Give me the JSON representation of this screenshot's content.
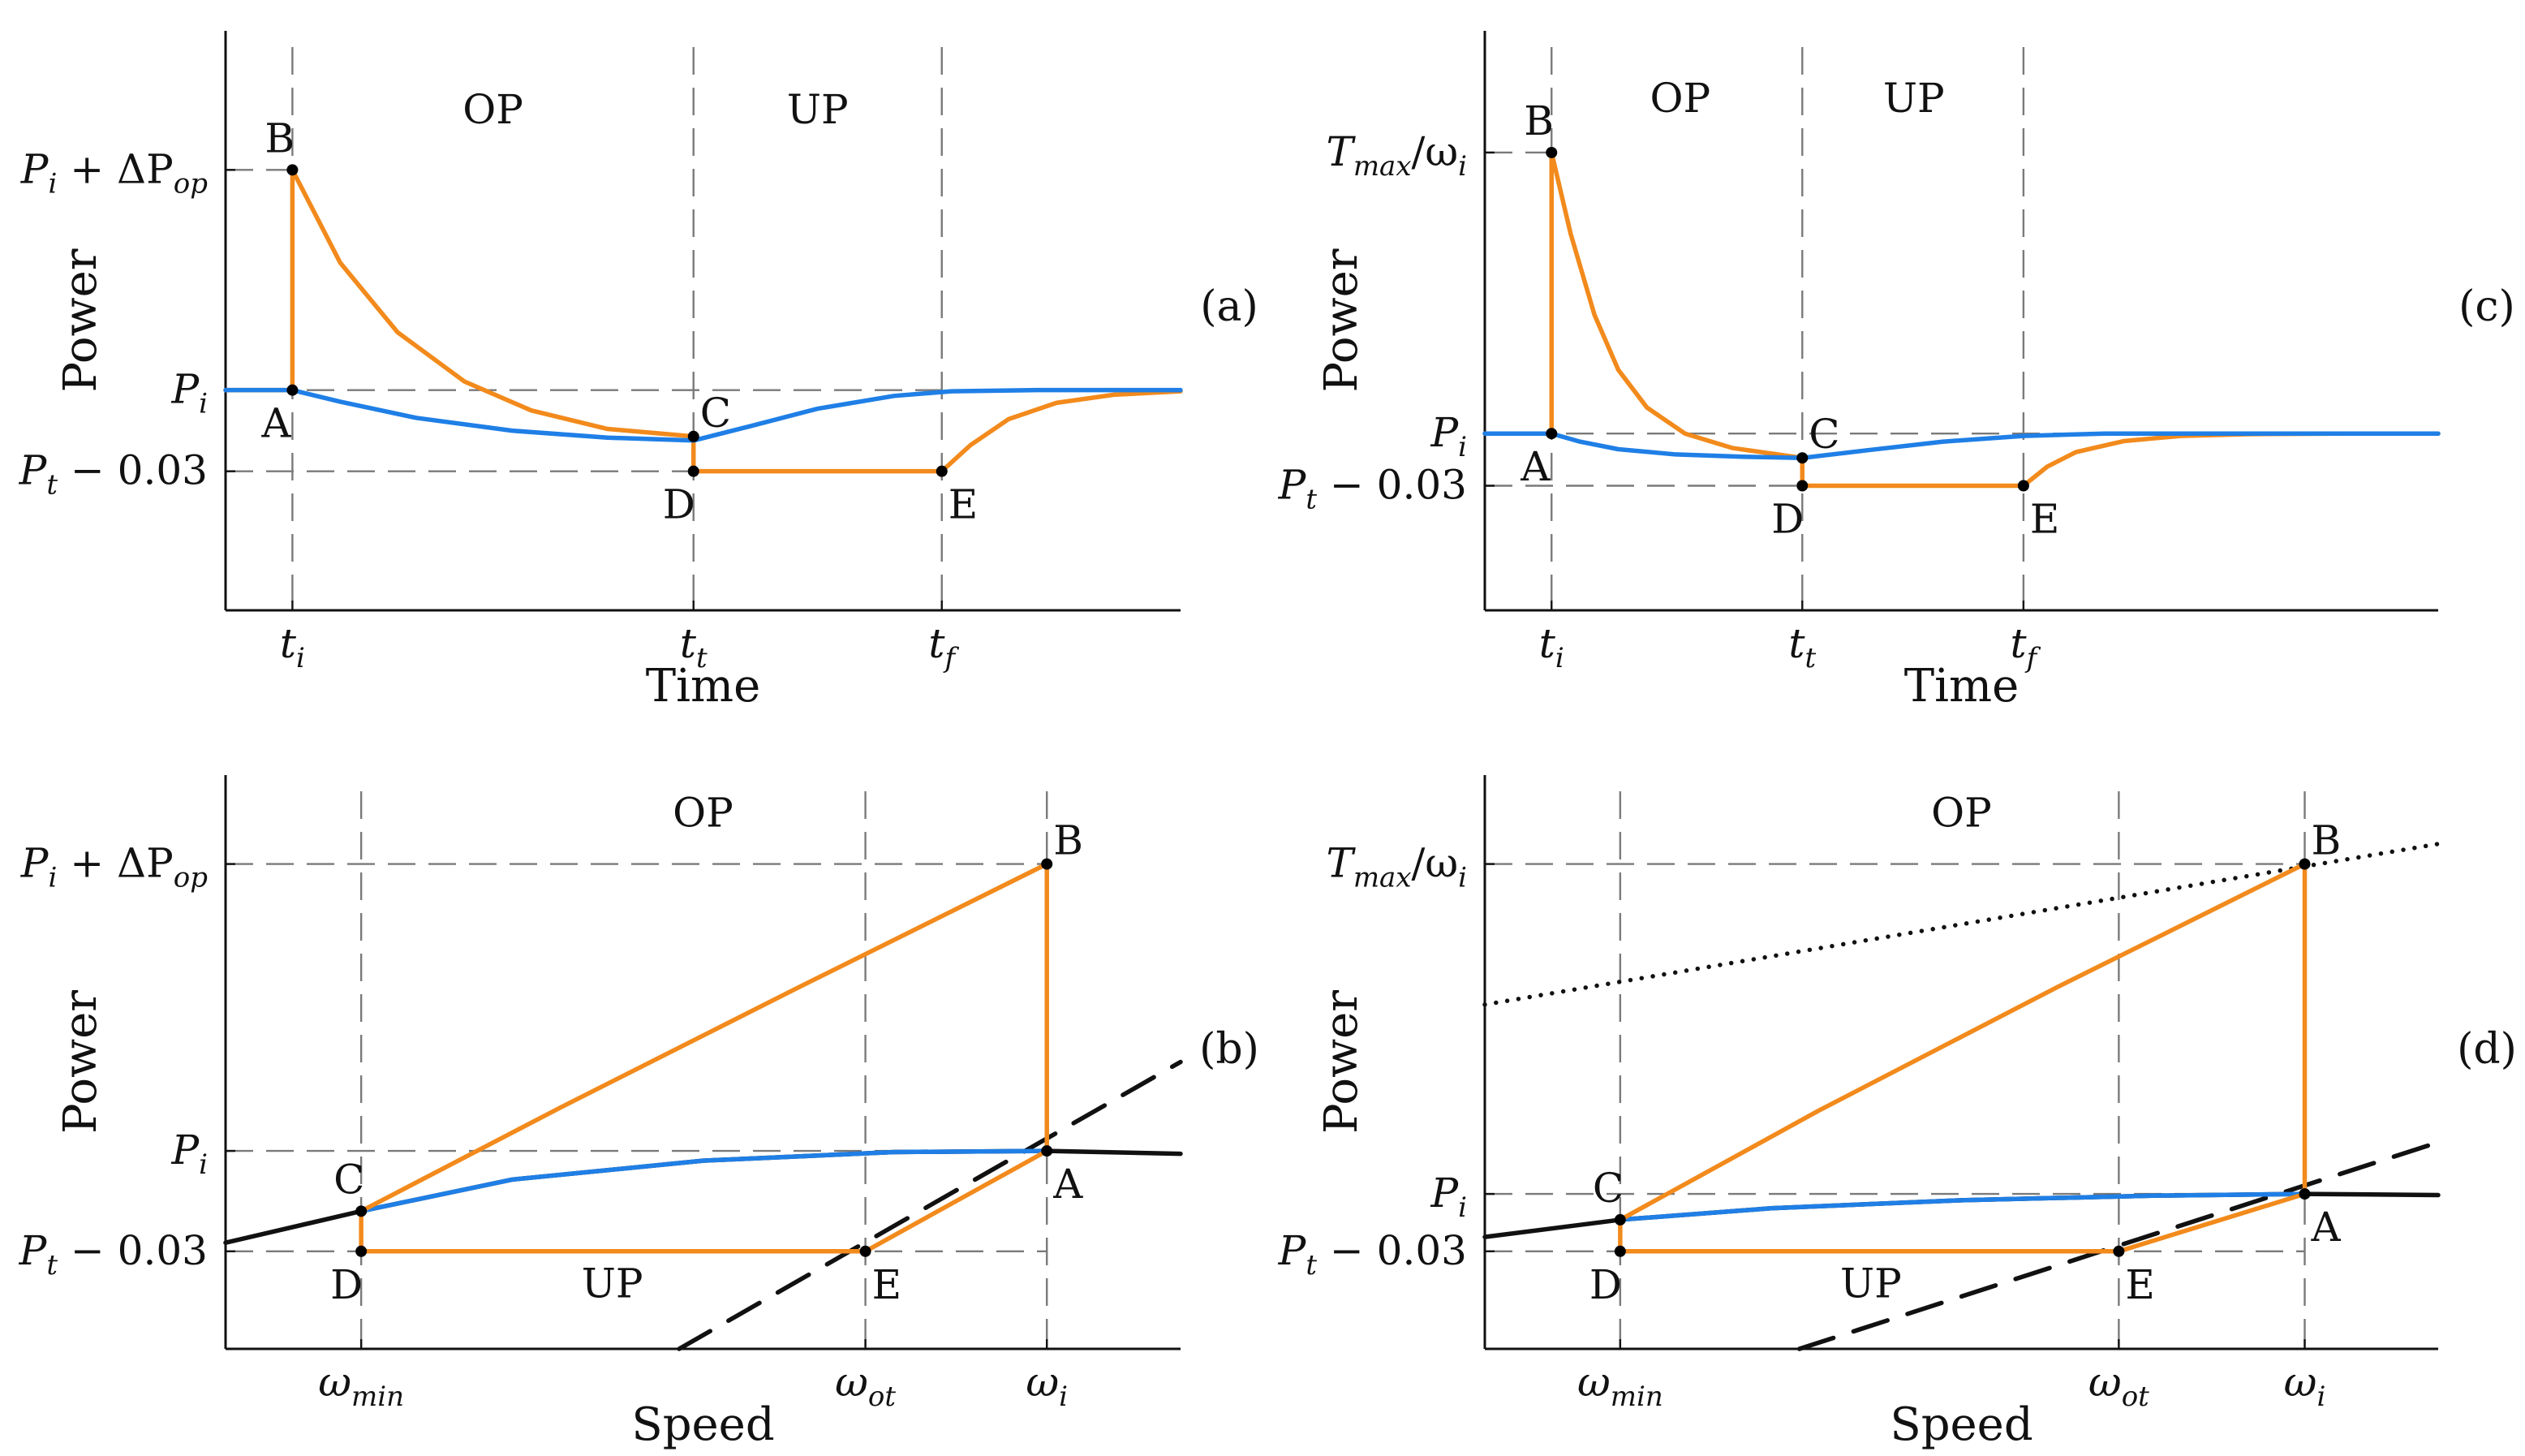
{
  "colors": {
    "orange": "#f28a1c",
    "blue": "#1f7fe6",
    "black": "#111111",
    "grid": "#7a7a7a"
  },
  "chart_data": [
    {
      "id": "a",
      "panel_label": "(a)",
      "type": "line",
      "xlabel": "Time",
      "ylabel": "Power",
      "xlim": [
        0,
        100
      ],
      "ylim": [
        0,
        100
      ],
      "x_ticks": [
        {
          "label": "t_i",
          "base": "t",
          "sub": "i",
          "x": 7
        },
        {
          "label": "t_t",
          "base": "t",
          "sub": "t",
          "x": 49
        },
        {
          "label": "t_f",
          "base": "t",
          "sub": "f",
          "x": 75
        }
      ],
      "y_ticks": [
        {
          "label": "P_i + ΔP_op",
          "base": "P",
          "sub": "i",
          "tail": " + ΔP",
          "tailsub": "op",
          "y": 76
        },
        {
          "label": "P_i",
          "base": "P",
          "sub": "i",
          "y": 38
        },
        {
          "label": "P_t − 0.03",
          "base": "P",
          "sub": "t",
          "tail": " − 0.03",
          "y": 24
        }
      ],
      "regions": [
        {
          "label": "OP",
          "x": 28,
          "y": 84
        },
        {
          "label": "UP",
          "x": 62,
          "y": 84
        }
      ],
      "series": [
        {
          "name": "orange",
          "color_key": "orange",
          "x": [
            0,
            7,
            7,
            12,
            18,
            25,
            32,
            40,
            49,
            49,
            75,
            78,
            82,
            87,
            93,
            100
          ],
          "y": [
            38,
            38,
            76,
            60,
            48,
            39.5,
            34.5,
            31.3,
            30,
            24,
            24,
            28.5,
            33,
            35.8,
            37.2,
            37.8
          ]
        },
        {
          "name": "blue",
          "color_key": "blue",
          "x": [
            0,
            7,
            12,
            20,
            30,
            40,
            49,
            55,
            62,
            70,
            76,
            85,
            100
          ],
          "y": [
            38,
            38,
            36,
            33.2,
            31,
            29.8,
            29.3,
            31.8,
            34.8,
            37,
            37.8,
            38,
            38
          ]
        }
      ],
      "points": [
        {
          "label": "A",
          "x": 7,
          "y": 38,
          "anchor": "bottom-left"
        },
        {
          "label": "B",
          "x": 7,
          "y": 76,
          "anchor": "top-left"
        },
        {
          "label": "C",
          "x": 49,
          "y": 30,
          "anchor": "top-right"
        },
        {
          "label": "D",
          "x": 49,
          "y": 24,
          "anchor": "bottom-left"
        },
        {
          "label": "E",
          "x": 75,
          "y": 24,
          "anchor": "bottom-right"
        }
      ],
      "grid_h": [
        76,
        38,
        24
      ],
      "grid_v": [
        7,
        49,
        75
      ]
    },
    {
      "id": "c",
      "panel_label": "(c)",
      "type": "line",
      "xlabel": "Time",
      "ylabel": "Power",
      "xlim": [
        0,
        100
      ],
      "ylim": [
        0,
        100
      ],
      "x_ticks": [
        {
          "label": "t_i",
          "base": "t",
          "sub": "i",
          "x": 7
        },
        {
          "label": "t_t",
          "base": "t",
          "sub": "t",
          "x": 33.3
        },
        {
          "label": "t_f",
          "base": "t",
          "sub": "f",
          "x": 56.5
        }
      ],
      "y_ticks": [
        {
          "label": "T_max/ω_i",
          "base": "T",
          "sub": "max",
          "tail": "/ω",
          "tailsub": "i",
          "y": 79
        },
        {
          "label": "P_i",
          "base": "P",
          "sub": "i",
          "y": 30.5
        },
        {
          "label": "P_t − 0.03",
          "base": "P",
          "sub": "t",
          "tail": " − 0.03",
          "y": 21.5
        }
      ],
      "regions": [
        {
          "label": "OP",
          "x": 20.5,
          "y": 86
        },
        {
          "label": "UP",
          "x": 45,
          "y": 86
        }
      ],
      "series": [
        {
          "name": "orange",
          "color_key": "orange",
          "x": [
            0,
            7,
            7,
            9,
            11.5,
            14,
            17,
            21,
            26,
            33.3,
            33.3,
            56.5,
            59,
            62,
            67,
            73,
            80,
            90,
            100
          ],
          "y": [
            30.5,
            30.5,
            79,
            65,
            51,
            41.5,
            35,
            30.5,
            28,
            26.3,
            21.5,
            21.5,
            24.8,
            27.3,
            29.2,
            30.1,
            30.4,
            30.5,
            30.5
          ]
        },
        {
          "name": "blue",
          "color_key": "blue",
          "x": [
            0,
            7,
            10,
            14,
            20,
            27,
            33.3,
            40,
            48,
            56.5,
            65,
            100
          ],
          "y": [
            30.5,
            30.5,
            29.1,
            27.8,
            26.9,
            26.5,
            26.3,
            27.6,
            29.1,
            30.1,
            30.5,
            30.5
          ]
        }
      ],
      "points": [
        {
          "label": "A",
          "x": 7,
          "y": 30.5,
          "anchor": "bottom-left"
        },
        {
          "label": "B",
          "x": 7,
          "y": 79,
          "anchor": "top-left"
        },
        {
          "label": "C",
          "x": 33.3,
          "y": 26.3,
          "anchor": "top-right"
        },
        {
          "label": "D",
          "x": 33.3,
          "y": 21.5,
          "anchor": "bottom-left"
        },
        {
          "label": "E",
          "x": 56.5,
          "y": 21.5,
          "anchor": "bottom-right"
        }
      ],
      "grid_h": [
        79,
        30.5,
        21.5
      ],
      "grid_v": [
        7,
        33.3,
        56.5
      ]
    },
    {
      "id": "b",
      "panel_label": "(b)",
      "type": "line",
      "xlabel": "Speed",
      "ylabel": "Power",
      "xlim": [
        0,
        100
      ],
      "ylim": [
        0,
        100
      ],
      "x_ticks": [
        {
          "label": "ω_min",
          "base": "ω",
          "sub": "min",
          "x": 14.2
        },
        {
          "label": "ω_ot",
          "base": "ω",
          "sub": "ot",
          "x": 67
        },
        {
          "label": "ω_i",
          "base": "ω",
          "sub": "i",
          "x": 86
        }
      ],
      "y_ticks": [
        {
          "label": "P_i + ΔP_op",
          "base": "P",
          "sub": "i",
          "tail": " + ΔP",
          "tailsub": "op",
          "y": 84.5
        },
        {
          "label": "P_i",
          "base": "P",
          "sub": "i",
          "y": 34.5
        },
        {
          "label": "P_t − 0.03",
          "base": "P",
          "sub": "t",
          "tail": " − 0.03",
          "y": 17
        }
      ],
      "regions": [
        {
          "label": "OP",
          "x": 50,
          "y": 91
        },
        {
          "label": "UP",
          "x": 40.5,
          "y": 9
        }
      ],
      "series": [
        {
          "name": "black",
          "color_key": "black",
          "style": "solid",
          "x": [
            0,
            14.2,
            30,
            50,
            70,
            86,
            100
          ],
          "y": [
            18.5,
            24,
            29.5,
            32.8,
            34.3,
            34.5,
            34
          ]
        },
        {
          "name": "black-dashed",
          "color_key": "black",
          "style": "dashed",
          "x": [
            47.5,
            100
          ],
          "y": [
            0,
            50
          ]
        },
        {
          "name": "blue",
          "color_key": "blue",
          "x": [
            14.2,
            30,
            50,
            70,
            86
          ],
          "y": [
            24,
            29.5,
            32.8,
            34.3,
            34.5
          ]
        },
        {
          "name": "orange",
          "color_key": "orange",
          "x": [
            14.2,
            14.2,
            67,
            86,
            86,
            60,
            35,
            14.2
          ],
          "y": [
            24,
            17,
            17,
            34.5,
            84.5,
            63,
            42,
            24
          ]
        }
      ],
      "points": [
        {
          "label": "A",
          "x": 86,
          "y": 34.5,
          "anchor": "bottom-right"
        },
        {
          "label": "B",
          "x": 86,
          "y": 84.5,
          "anchor": "top-right"
        },
        {
          "label": "C",
          "x": 14.2,
          "y": 24,
          "anchor": "top-left"
        },
        {
          "label": "D",
          "x": 14.2,
          "y": 17,
          "anchor": "bottom-left"
        },
        {
          "label": "E",
          "x": 67,
          "y": 17,
          "anchor": "bottom-right"
        }
      ],
      "grid_h": [
        84.5,
        34.5,
        17
      ],
      "grid_v": [
        14.2,
        67,
        86
      ]
    },
    {
      "id": "d",
      "panel_label": "(d)",
      "type": "line",
      "xlabel": "Speed",
      "ylabel": "Power",
      "xlim": [
        0,
        100
      ],
      "ylim": [
        0,
        100
      ],
      "x_ticks": [
        {
          "label": "ω_min",
          "base": "ω",
          "sub": "min",
          "x": 14.2
        },
        {
          "label": "ω_ot",
          "base": "ω",
          "sub": "ot",
          "x": 66.5
        },
        {
          "label": "ω_i",
          "base": "ω",
          "sub": "i",
          "x": 86
        }
      ],
      "y_ticks": [
        {
          "label": "T_max/ω_i",
          "base": "T",
          "sub": "max",
          "tail": "/ω",
          "tailsub": "i",
          "y": 84.5
        },
        {
          "label": "P_i",
          "base": "P",
          "sub": "i",
          "y": 27
        },
        {
          "label": "P_t − 0.03",
          "base": "P",
          "sub": "t",
          "tail": " − 0.03",
          "y": 17
        }
      ],
      "regions": [
        {
          "label": "OP",
          "x": 50,
          "y": 91
        },
        {
          "label": "UP",
          "x": 40.5,
          "y": 9
        }
      ],
      "series": [
        {
          "name": "black",
          "color_key": "black",
          "style": "solid",
          "x": [
            0,
            14.2,
            30,
            50,
            70,
            86,
            100
          ],
          "y": [
            19.5,
            22.5,
            24.5,
            25.9,
            26.7,
            27,
            26.8
          ]
        },
        {
          "name": "black-dashed",
          "color_key": "black",
          "style": "dashed",
          "x": [
            33,
            100
          ],
          "y": [
            0,
            36
          ]
        },
        {
          "name": "black-dotted",
          "color_key": "black",
          "style": "dotted",
          "x": [
            0,
            100
          ],
          "y": [
            60,
            88
          ]
        },
        {
          "name": "blue",
          "color_key": "blue",
          "x": [
            14.2,
            30,
            50,
            70,
            86
          ],
          "y": [
            22.5,
            24.5,
            25.9,
            26.7,
            27
          ]
        },
        {
          "name": "orange",
          "color_key": "orange",
          "x": [
            14.2,
            14.2,
            66.5,
            86,
            86,
            60,
            35,
            14.2
          ],
          "y": [
            22.5,
            17,
            17,
            27,
            84.5,
            63,
            41.5,
            22.5
          ]
        }
      ],
      "points": [
        {
          "label": "A",
          "x": 86,
          "y": 27,
          "anchor": "bottom-right"
        },
        {
          "label": "B",
          "x": 86,
          "y": 84.5,
          "anchor": "top-right"
        },
        {
          "label": "C",
          "x": 14.2,
          "y": 22.5,
          "anchor": "top-left"
        },
        {
          "label": "D",
          "x": 14.2,
          "y": 17,
          "anchor": "bottom-left"
        },
        {
          "label": "E",
          "x": 66.5,
          "y": 17,
          "anchor": "bottom-right"
        }
      ],
      "grid_h": [
        84.5,
        27,
        17
      ],
      "grid_v": [
        14.2,
        66.5,
        86
      ]
    }
  ]
}
